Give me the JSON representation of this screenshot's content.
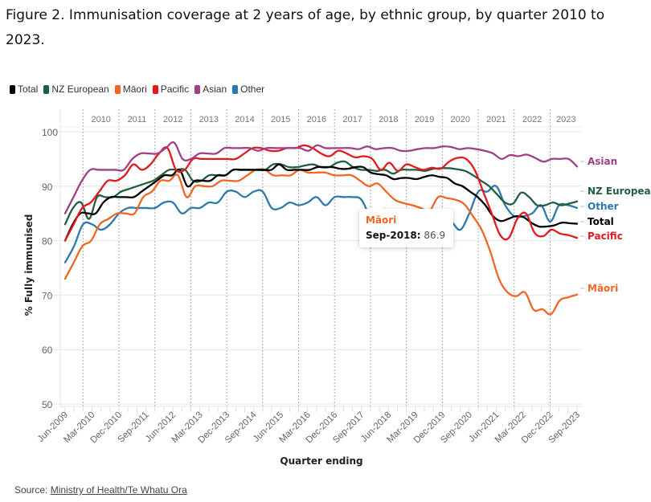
{
  "title": "Figure 2.  Immunisation coverage at 2 years of age, by ethnic group, by quarter 2010 to 2023.",
  "source": {
    "prefix": "Source: ",
    "link_text": "Ministry of Health/Te Whatu Ora"
  },
  "tooltip": {
    "series": "Māori",
    "date": "Sep-2018:",
    "value": "86.9"
  },
  "chart_data": {
    "type": "line",
    "title": "Immunisation coverage at 2 years of age, by ethnic group, by quarter 2010 to 2023",
    "xlabel": "Quarter ending",
    "ylabel": "% Fully immunised",
    "ylim": [
      50,
      100
    ],
    "yticks": [
      50,
      60,
      70,
      80,
      90,
      100
    ],
    "grid": true,
    "legend_position": "top-left",
    "x_tick_labels": [
      "Jun-2009",
      "Mar-2010",
      "Dec-2010",
      "Sep-2011",
      "Jun-2012",
      "Mar-2013",
      "Dec-2013",
      "Sep-2014",
      "Jun-2015",
      "Mar-2016",
      "Dec-2016",
      "Sep-2017",
      "Jun-2018",
      "Mar-2019",
      "Dec-2019",
      "Sep-2020",
      "Jun-2021",
      "Mar-2022",
      "Dec-2022",
      "Sep-2023"
    ],
    "year_bands": [
      "2010",
      "2011",
      "2012",
      "2013",
      "2014",
      "2015",
      "2016",
      "2017",
      "2018",
      "2019",
      "2020",
      "2021",
      "2022",
      "2023"
    ],
    "x_start": "Jun-2009",
    "x_end": "Sep-2023",
    "series": [
      {
        "name": "Total",
        "color": "#000000",
        "values": [
          80,
          83,
          85,
          85,
          85,
          87,
          88,
          88,
          88,
          88,
          89,
          90,
          91,
          92,
          92,
          93,
          90,
          91,
          91,
          91,
          92,
          92,
          93,
          93,
          93,
          93,
          93,
          93,
          94,
          93,
          93,
          93,
          93,
          93.5,
          93.5,
          93.5,
          93.2,
          93.2,
          93.5,
          93.5,
          92.5,
          92.2,
          92,
          91.3,
          91.5,
          91.5,
          91.3,
          91.7,
          92,
          91.7,
          91.5,
          90.5,
          90,
          89,
          88,
          86.5,
          84.5,
          83.6,
          84,
          84.5,
          84.3,
          83.3,
          82.6,
          82.6,
          82.8,
          83.3,
          83.2,
          83.1
        ]
      },
      {
        "name": "NZ European",
        "color": "#1f5f3f",
        "values": [
          83,
          86,
          87,
          84,
          88,
          88,
          88,
          89,
          89.5,
          90,
          90.5,
          91,
          92,
          93,
          93,
          93,
          91,
          91,
          92,
          92,
          92,
          93,
          93,
          93,
          93,
          93,
          94,
          94,
          93.5,
          93.5,
          93.8,
          94,
          93.5,
          93.5,
          94.3,
          94.5,
          93.5,
          93,
          93,
          92.8,
          93,
          92.3,
          93,
          93,
          93,
          92.8,
          93.2,
          93.3,
          93.3,
          93.1,
          92.8,
          92,
          91,
          90,
          88.5,
          87,
          86.8,
          88.8,
          88,
          86.5,
          86.5,
          87,
          86.5,
          86.8,
          87.2
        ]
      },
      {
        "name": "Māori",
        "color": "#f26522",
        "values": [
          73,
          76,
          79,
          80,
          83,
          84,
          85,
          85,
          85,
          88,
          89,
          91,
          91,
          92,
          88,
          90,
          90,
          90,
          91,
          91,
          91,
          92,
          93,
          93,
          92,
          92,
          92,
          93,
          92.5,
          92.5,
          92.5,
          92,
          92,
          92,
          91,
          90,
          90.5,
          89,
          87.5,
          86.9,
          86.5,
          86,
          85.5,
          88,
          87.8,
          87.5,
          86.7,
          84.5,
          82,
          78,
          73,
          70.5,
          69.8,
          70.5,
          67.3,
          67.4,
          66.5,
          69,
          69.6,
          70.1
        ]
      },
      {
        "name": "Pacific",
        "color": "#e31a1c",
        "values": [
          80,
          83,
          86,
          87,
          89,
          91,
          91,
          92,
          94,
          93,
          94,
          96,
          97,
          93,
          93,
          95,
          95,
          95,
          95,
          95,
          95,
          96,
          97,
          97,
          96.5,
          96.5,
          97,
          97,
          97.5,
          97,
          96,
          95.5,
          96.5,
          96,
          95.3,
          95.5,
          95,
          93,
          94.3,
          92.8,
          94,
          93.5,
          93,
          93.4,
          93.2,
          94.5,
          95.2,
          95,
          93,
          89,
          85,
          81,
          80.5,
          84,
          85,
          81.5,
          80.8,
          82,
          81.3,
          81,
          80.5
        ]
      },
      {
        "name": "Asian",
        "color": "#9e3f87",
        "values": [
          85,
          88,
          91,
          93,
          93,
          93,
          93,
          93,
          95,
          96,
          96,
          96,
          97,
          98,
          95,
          95,
          96,
          96,
          96,
          97,
          97,
          97,
          97,
          96.5,
          97,
          97,
          97,
          97,
          97,
          96.5,
          97.5,
          97,
          97,
          97,
          97,
          96.8,
          97.3,
          96.8,
          97,
          97,
          96.5,
          96.5,
          96.8,
          97,
          97,
          97.3,
          97.2,
          96.8,
          97,
          96.8,
          96.5,
          96,
          95,
          95.7,
          95.5,
          95.8,
          95.2,
          94.5,
          95,
          95,
          95,
          93.6
        ]
      },
      {
        "name": "Other",
        "color": "#2a7ab0",
        "values": [
          76,
          79,
          83,
          83,
          82,
          83,
          85,
          86,
          86,
          86,
          86,
          87,
          87,
          85,
          86,
          86,
          87,
          87,
          89,
          89,
          88,
          89,
          89,
          86,
          86,
          87,
          86.5,
          87,
          88,
          86.5,
          88,
          88,
          88,
          87.5,
          84,
          81,
          80,
          82.5,
          85,
          85,
          84.5,
          85.5,
          84,
          83.5,
          82,
          85,
          89,
          89,
          90,
          86.5,
          84.5,
          84.5,
          85,
          86.5,
          83.5,
          86.5,
          86.5,
          86
        ]
      }
    ],
    "end_labels": [
      "Asian",
      "NZ European",
      "Other",
      "Total",
      "Pacific",
      "Māori"
    ]
  }
}
